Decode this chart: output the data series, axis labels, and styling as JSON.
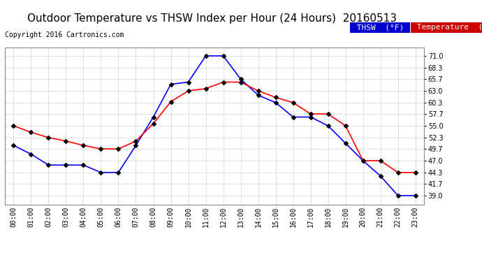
{
  "title": "Outdoor Temperature vs THSW Index per Hour (24 Hours)  20160513",
  "copyright": "Copyright 2016 Cartronics.com",
  "hours": [
    "00:00",
    "01:00",
    "02:00",
    "03:00",
    "04:00",
    "05:00",
    "06:00",
    "07:00",
    "08:00",
    "09:00",
    "10:00",
    "11:00",
    "12:00",
    "13:00",
    "14:00",
    "15:00",
    "16:00",
    "17:00",
    "18:00",
    "19:00",
    "20:00",
    "21:00",
    "22:00",
    "23:00"
  ],
  "thsw": [
    50.5,
    48.5,
    46.0,
    46.0,
    46.0,
    44.3,
    44.3,
    50.5,
    57.0,
    64.5,
    65.0,
    71.0,
    71.0,
    65.7,
    62.0,
    60.3,
    57.0,
    57.0,
    55.0,
    51.0,
    47.0,
    43.5,
    39.0,
    39.0
  ],
  "temp": [
    55.0,
    53.5,
    52.3,
    51.5,
    50.5,
    49.7,
    49.7,
    51.5,
    55.5,
    60.5,
    63.0,
    63.5,
    65.0,
    65.0,
    63.0,
    61.5,
    60.3,
    57.7,
    57.7,
    55.0,
    47.0,
    47.0,
    44.3,
    44.3
  ],
  "ylim": [
    37.0,
    73.0
  ],
  "yticks": [
    39.0,
    41.7,
    44.3,
    47.0,
    49.7,
    52.3,
    55.0,
    57.7,
    60.3,
    63.0,
    65.7,
    68.3,
    71.0
  ],
  "thsw_color": "#0000ff",
  "temp_color": "#ff0000",
  "bg_color": "#ffffff",
  "plot_bg": "#ffffff",
  "grid_color": "#bbbbbb",
  "legend_thsw_bg": "#0000cc",
  "legend_temp_bg": "#cc0000",
  "title_fontsize": 11,
  "copyright_fontsize": 7,
  "axis_fontsize": 7
}
